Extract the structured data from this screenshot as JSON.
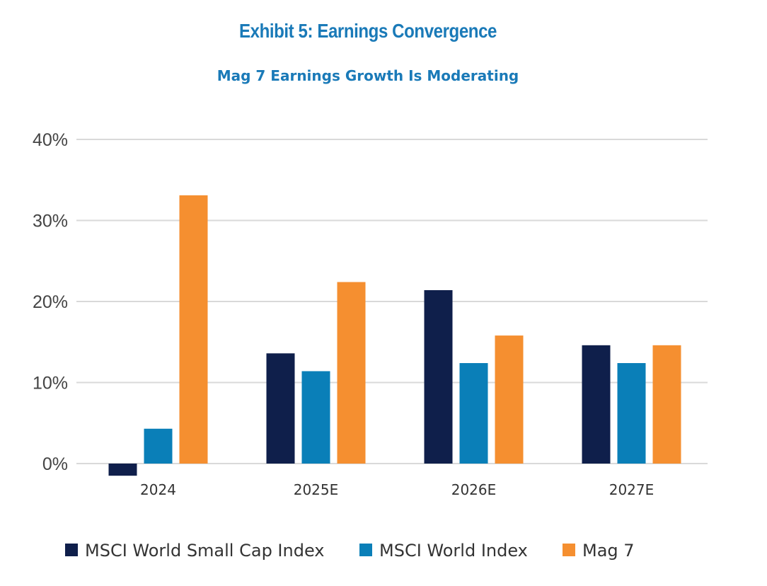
{
  "header": {
    "title": "Exhibit 5: Earnings Convergence",
    "subtitle": "Mag 7 Earnings Growth Is Moderating"
  },
  "colors": {
    "title": "#1a7ab8",
    "small_cap": "#0f1f4b",
    "world": "#0a7fb8",
    "mag7": "#f58f30",
    "grid": "#d9d9d9"
  },
  "chart_data": {
    "type": "bar",
    "categories": [
      "2024",
      "2025E",
      "2026E",
      "2027E"
    ],
    "series": [
      {
        "name": "MSCI World Small Cap Index",
        "values": [
          -1.5,
          13.6,
          21.4,
          14.6
        ]
      },
      {
        "name": "MSCI World Index",
        "values": [
          4.3,
          11.4,
          12.4,
          12.4
        ]
      },
      {
        "name": "Mag 7",
        "values": [
          33.1,
          22.4,
          15.8,
          14.6
        ]
      }
    ],
    "ylim": [
      0,
      40
    ],
    "yticks": [
      0,
      10,
      20,
      30,
      40
    ],
    "ytick_labels": [
      "0%",
      "10%",
      "20%",
      "30%",
      "40%"
    ],
    "grid": true,
    "legend_position": "bottom"
  }
}
